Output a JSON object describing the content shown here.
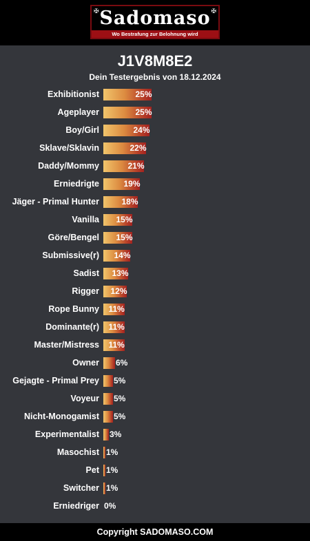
{
  "header": {
    "logo_title": "Sadomaso",
    "logo_tagline": "Wo Bestrafung zur Belohnung wird"
  },
  "title": "J1V8M8E2",
  "subtitle": "Dein Testergebnis von 18.12.2024",
  "footer": "Copyright SADOMASO.COM",
  "colors": {
    "background": "#34363b",
    "header": "#000000",
    "bar_start": "#f1c56b",
    "bar_end": "#a3221f",
    "accent_red": "#9c0f14"
  },
  "chart_data": {
    "type": "bar",
    "orientation": "horizontal",
    "value_suffix": "%",
    "xlim": [
      0,
      100
    ],
    "grid": false,
    "legend": "none",
    "categories": [
      "Exhibitionist",
      "Ageplayer",
      "Boy/Girl",
      "Sklave/Sklavin",
      "Daddy/Mommy",
      "Erniedrigte",
      "Jäger - Primal Hunter",
      "Vanilla",
      "Göre/Bengel",
      "Submissive(r)",
      "Sadist",
      "Rigger",
      "Rope Bunny",
      "Dominante(r)",
      "Master/Mistress",
      "Owner",
      "Gejagte - Primal Prey",
      "Voyeur",
      "Nicht-Monogamist",
      "Experimentalist",
      "Masochist",
      "Pet",
      "Switcher",
      "Erniedriger"
    ],
    "values": [
      25,
      25,
      24,
      22,
      21,
      19,
      18,
      15,
      15,
      14,
      13,
      12,
      11,
      11,
      11,
      6,
      5,
      5,
      5,
      3,
      1,
      1,
      1,
      0
    ]
  }
}
